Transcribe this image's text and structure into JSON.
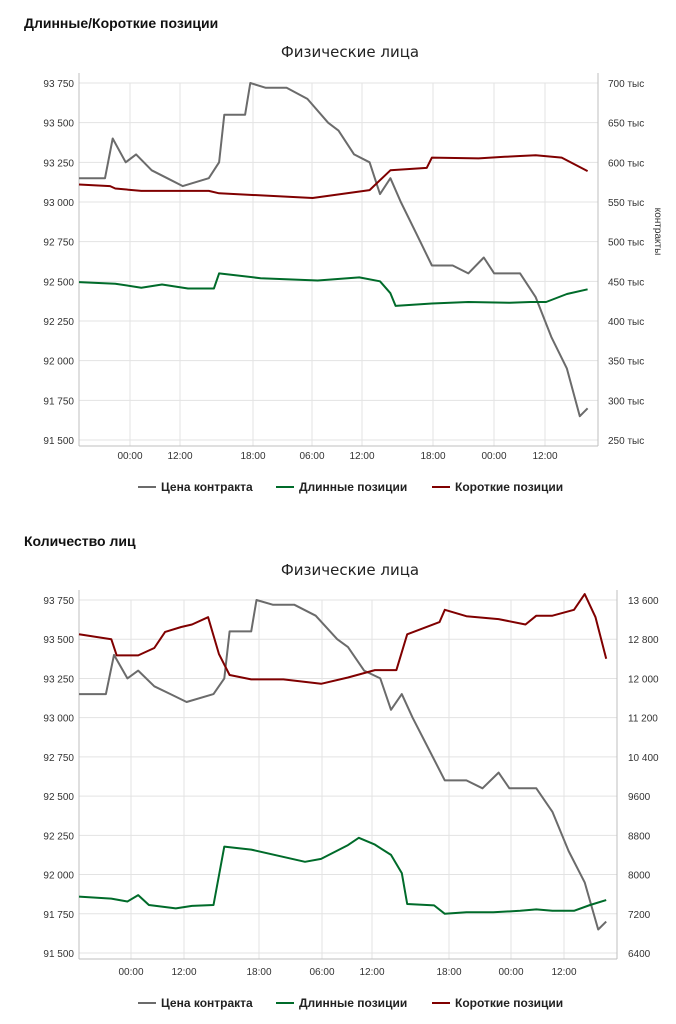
{
  "sections": [
    {
      "title": "Длинные/Короткие позиции"
    },
    {
      "title": "Количество лиц"
    }
  ],
  "colors": {
    "price": "#6b6b6b",
    "long": "#006b2a",
    "short": "#800000",
    "grid": "#e3e3e3"
  },
  "chart_data": [
    {
      "type": "line",
      "title": "Физические лица",
      "x_tick_labels": [
        "00:00",
        "12:00",
        "18:00",
        "06:00",
        "12:00",
        "18:00",
        "00:00",
        "12:00"
      ],
      "y_left": {
        "ticks": [
          "93 750",
          "93 500",
          "93 250",
          "93 000",
          "92 750",
          "92 500",
          "92 250",
          "92 000",
          "91 750",
          "91 500"
        ],
        "range": [
          91500,
          93750
        ]
      },
      "y_right": {
        "label": "контракты",
        "ticks": [
          "700 тыс",
          "650 тыс",
          "600 тыс",
          "550 тыс",
          "500 тыс",
          "450 тыс",
          "400 тыс",
          "350 тыс",
          "300 тыс",
          "250 тыс"
        ],
        "range": [
          250000,
          700000
        ]
      },
      "series": [
        {
          "name": "Цена контракта",
          "axis": "left",
          "points": [
            [
              0,
              93150
            ],
            [
              0.05,
              93150
            ],
            [
              0.065,
              93400
            ],
            [
              0.09,
              93250
            ],
            [
              0.11,
              93300
            ],
            [
              0.14,
              93200
            ],
            [
              0.17,
              93150
            ],
            [
              0.2,
              93100
            ],
            [
              0.25,
              93150
            ],
            [
              0.27,
              93250
            ],
            [
              0.28,
              93550
            ],
            [
              0.32,
              93550
            ],
            [
              0.33,
              93750
            ],
            [
              0.36,
              93720
            ],
            [
              0.4,
              93720
            ],
            [
              0.44,
              93650
            ],
            [
              0.48,
              93500
            ],
            [
              0.5,
              93450
            ],
            [
              0.53,
              93300
            ],
            [
              0.56,
              93250
            ],
            [
              0.58,
              93050
            ],
            [
              0.6,
              93150
            ],
            [
              0.62,
              93000
            ],
            [
              0.65,
              92800
            ],
            [
              0.68,
              92600
            ],
            [
              0.72,
              92600
            ],
            [
              0.75,
              92550
            ],
            [
              0.78,
              92650
            ],
            [
              0.8,
              92550
            ],
            [
              0.83,
              92550
            ],
            [
              0.85,
              92550
            ],
            [
              0.88,
              92400
            ],
            [
              0.91,
              92150
            ],
            [
              0.94,
              91950
            ],
            [
              0.965,
              91650
            ],
            [
              0.98,
              91700
            ]
          ]
        },
        {
          "name": "Длинные позиции",
          "axis": "right",
          "points": [
            [
              0,
              449000
            ],
            [
              0.07,
              447000
            ],
            [
              0.12,
              442000
            ],
            [
              0.16,
              446000
            ],
            [
              0.21,
              441000
            ],
            [
              0.26,
              441000
            ],
            [
              0.27,
              460000
            ],
            [
              0.35,
              454000
            ],
            [
              0.46,
              451000
            ],
            [
              0.54,
              455000
            ],
            [
              0.58,
              450000
            ],
            [
              0.6,
              435000
            ],
            [
              0.61,
              419000
            ],
            [
              0.68,
              422000
            ],
            [
              0.75,
              424000
            ],
            [
              0.83,
              423000
            ],
            [
              0.87,
              424000
            ],
            [
              0.9,
              424000
            ],
            [
              0.94,
              434000
            ],
            [
              0.98,
              440000
            ]
          ]
        },
        {
          "name": "Короткие позиции",
          "axis": "right",
          "points": [
            [
              0,
              572000
            ],
            [
              0.06,
              570000
            ],
            [
              0.07,
              567000
            ],
            [
              0.12,
              564000
            ],
            [
              0.25,
              564000
            ],
            [
              0.27,
              561000
            ],
            [
              0.45,
              555000
            ],
            [
              0.56,
              565000
            ],
            [
              0.6,
              590000
            ],
            [
              0.67,
              593000
            ],
            [
              0.68,
              606000
            ],
            [
              0.77,
              605000
            ],
            [
              0.82,
              607000
            ],
            [
              0.85,
              608000
            ],
            [
              0.88,
              609000
            ],
            [
              0.93,
              606000
            ],
            [
              0.98,
              589000
            ]
          ]
        }
      ]
    },
    {
      "type": "line",
      "title": "Физические лица",
      "x_tick_labels": [
        "00:00",
        "12:00",
        "18:00",
        "06:00",
        "12:00",
        "18:00",
        "00:00",
        "12:00"
      ],
      "y_left": {
        "ticks": [
          "93 750",
          "93 500",
          "93 250",
          "93 000",
          "92 750",
          "92 500",
          "92 250",
          "92 000",
          "91 750",
          "91 500"
        ],
        "range": [
          91500,
          93750
        ]
      },
      "y_right": {
        "ticks": [
          "13 600",
          "12 800",
          "12 000",
          "11 200",
          "10 400",
          "9600",
          "8800",
          "8000",
          "7200",
          "6400"
        ],
        "range": [
          6400,
          13600
        ]
      },
      "series": [
        {
          "name": "Цена контракта",
          "axis": "left",
          "points": [
            [
              0,
              93150
            ],
            [
              0.05,
              93150
            ],
            [
              0.065,
              93400
            ],
            [
              0.09,
              93250
            ],
            [
              0.11,
              93300
            ],
            [
              0.14,
              93200
            ],
            [
              0.17,
              93150
            ],
            [
              0.2,
              93100
            ],
            [
              0.25,
              93150
            ],
            [
              0.27,
              93250
            ],
            [
              0.28,
              93550
            ],
            [
              0.32,
              93550
            ],
            [
              0.33,
              93750
            ],
            [
              0.36,
              93720
            ],
            [
              0.4,
              93720
            ],
            [
              0.44,
              93650
            ],
            [
              0.48,
              93500
            ],
            [
              0.5,
              93450
            ],
            [
              0.53,
              93300
            ],
            [
              0.56,
              93250
            ],
            [
              0.58,
              93050
            ],
            [
              0.6,
              93150
            ],
            [
              0.62,
              93000
            ],
            [
              0.65,
              92800
            ],
            [
              0.68,
              92600
            ],
            [
              0.72,
              92600
            ],
            [
              0.75,
              92550
            ],
            [
              0.78,
              92650
            ],
            [
              0.8,
              92550
            ],
            [
              0.83,
              92550
            ],
            [
              0.85,
              92550
            ],
            [
              0.88,
              92400
            ],
            [
              0.91,
              92150
            ],
            [
              0.94,
              91950
            ],
            [
              0.965,
              91650
            ],
            [
              0.98,
              91700
            ]
          ]
        },
        {
          "name": "Длинные позиции",
          "axis": "right",
          "points": [
            [
              0,
              7550
            ],
            [
              0.06,
              7510
            ],
            [
              0.09,
              7450
            ],
            [
              0.11,
              7580
            ],
            [
              0.13,
              7380
            ],
            [
              0.18,
              7310
            ],
            [
              0.21,
              7360
            ],
            [
              0.25,
              7380
            ],
            [
              0.27,
              8570
            ],
            [
              0.32,
              8510
            ],
            [
              0.42,
              8260
            ],
            [
              0.45,
              8320
            ],
            [
              0.5,
              8600
            ],
            [
              0.52,
              8750
            ],
            [
              0.55,
              8610
            ],
            [
              0.58,
              8400
            ],
            [
              0.6,
              8030
            ],
            [
              0.61,
              7400
            ],
            [
              0.66,
              7370
            ],
            [
              0.68,
              7200
            ],
            [
              0.72,
              7230
            ],
            [
              0.77,
              7230
            ],
            [
              0.82,
              7260
            ],
            [
              0.85,
              7290
            ],
            [
              0.88,
              7260
            ],
            [
              0.92,
              7260
            ],
            [
              0.95,
              7380
            ],
            [
              0.98,
              7480
            ]
          ]
        },
        {
          "name": "Короткие позиции",
          "axis": "right",
          "points": [
            [
              0,
              12900
            ],
            [
              0.06,
              12800
            ],
            [
              0.07,
              12470
            ],
            [
              0.11,
              12470
            ],
            [
              0.14,
              12620
            ],
            [
              0.16,
              12950
            ],
            [
              0.19,
              13050
            ],
            [
              0.21,
              13100
            ],
            [
              0.24,
              13250
            ],
            [
              0.26,
              12500
            ],
            [
              0.28,
              12070
            ],
            [
              0.32,
              11980
            ],
            [
              0.38,
              11980
            ],
            [
              0.45,
              11890
            ],
            [
              0.5,
              12020
            ],
            [
              0.55,
              12170
            ],
            [
              0.59,
              12170
            ],
            [
              0.61,
              12900
            ],
            [
              0.67,
              13150
            ],
            [
              0.68,
              13400
            ],
            [
              0.72,
              13270
            ],
            [
              0.78,
              13210
            ],
            [
              0.83,
              13100
            ],
            [
              0.85,
              13280
            ],
            [
              0.88,
              13280
            ],
            [
              0.92,
              13400
            ],
            [
              0.94,
              13720
            ],
            [
              0.96,
              13250
            ],
            [
              0.98,
              12400
            ]
          ]
        }
      ]
    }
  ],
  "legend": {
    "price": "Цена контракта",
    "long": "Длинные позиции",
    "short": "Короткие позиции"
  }
}
